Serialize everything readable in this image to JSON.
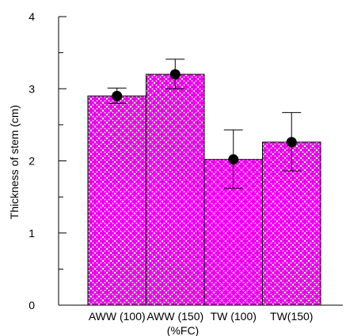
{
  "chart_data": {
    "type": "bar",
    "categories": [
      "AWW (100)",
      "AWW (150)",
      "TW (100)",
      "TW(150)"
    ],
    "values": [
      2.9,
      3.2,
      2.02,
      2.26
    ],
    "error_bars": [
      {
        "low": 2.8,
        "high": 3.01
      },
      {
        "low": 3.0,
        "high": 3.41
      },
      {
        "low": 1.62,
        "high": 2.43
      },
      {
        "low": 1.86,
        "high": 2.67
      }
    ],
    "markers": [
      2.9,
      3.2,
      2.02,
      2.26
    ],
    "title": "",
    "xlabel": "(%FC)",
    "ylabel": "Thickness of stem (cm)",
    "ylim": [
      0,
      4
    ],
    "yticks": [
      "0",
      "1",
      "2",
      "3",
      "4"
    ],
    "grid": false,
    "legend": "none",
    "bar_color": "#ee00ee",
    "bar_pattern_color": "#ffffff"
  }
}
